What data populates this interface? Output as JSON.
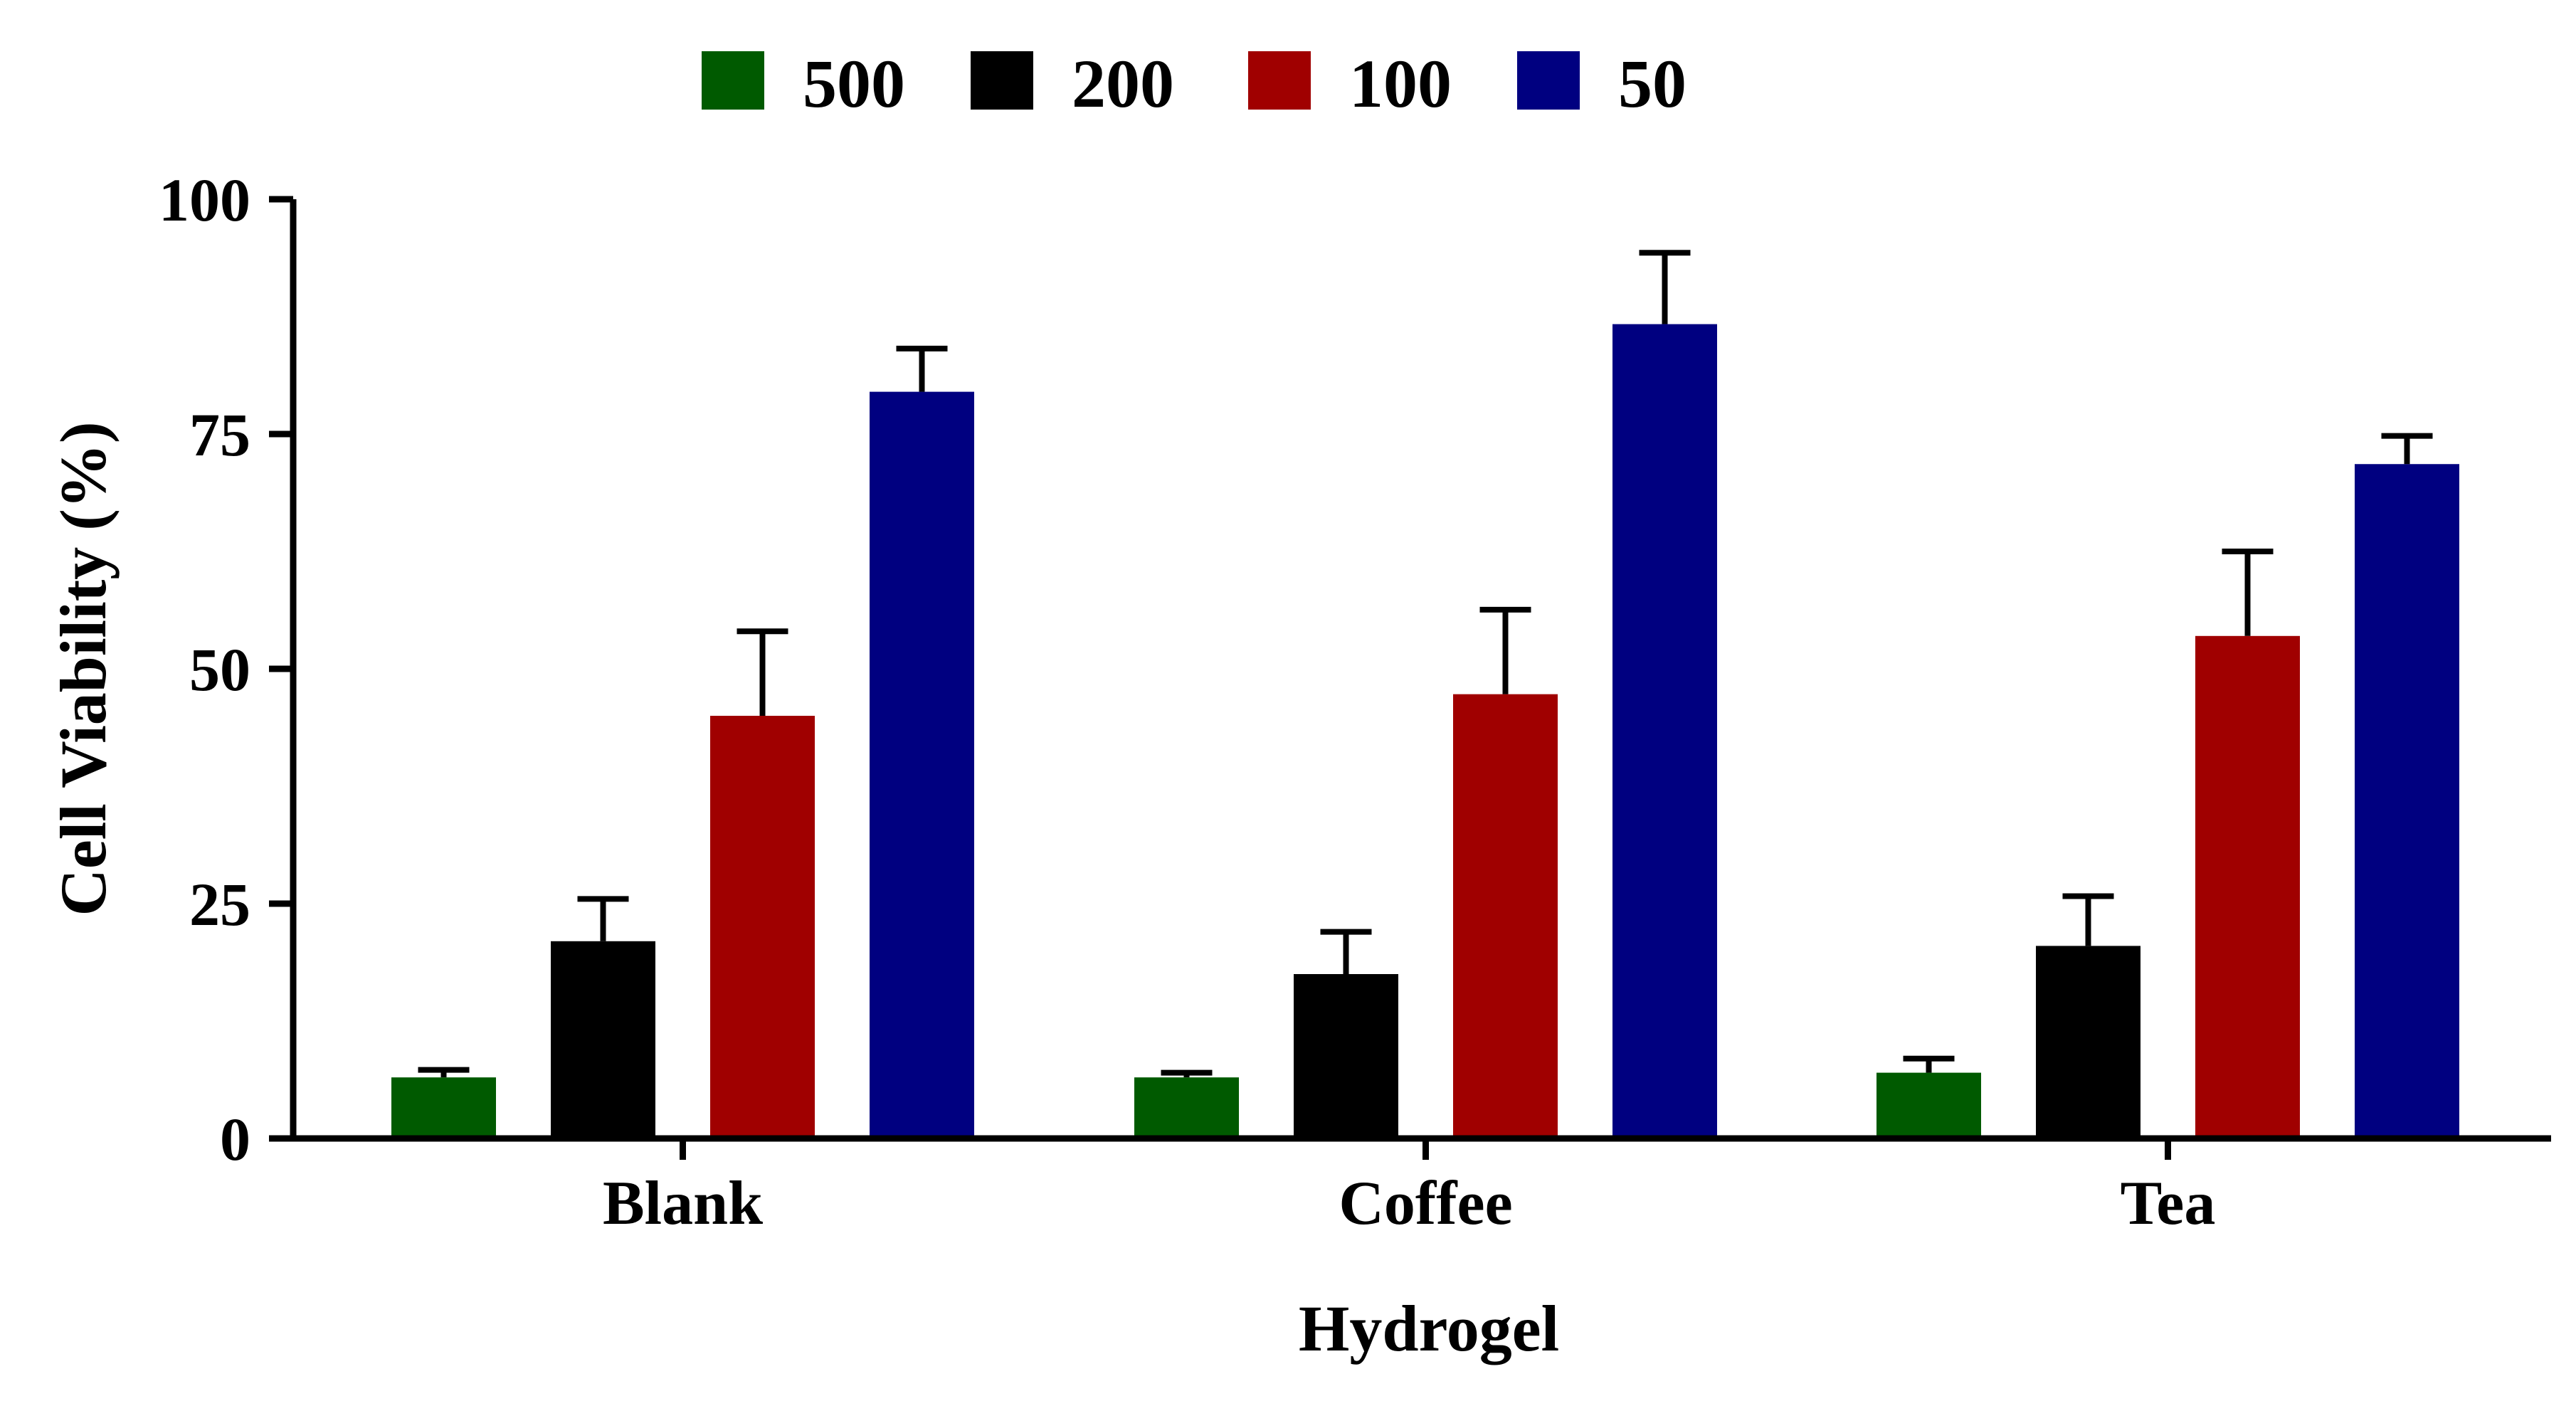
{
  "chart_data": {
    "type": "bar",
    "categories": [
      "Blank",
      "Coffee",
      "Tea"
    ],
    "series": [
      {
        "name": "500",
        "color": "#005a00",
        "values": [
          6.5,
          6.5,
          7
        ],
        "errors": [
          0.8,
          0.5,
          1.5
        ]
      },
      {
        "name": "200",
        "color": "#000000",
        "values": [
          21,
          17.5,
          20.5
        ],
        "errors": [
          4.5,
          4.5,
          5.3
        ]
      },
      {
        "name": "100",
        "color": "#a00000",
        "values": [
          45,
          47.3,
          53.5
        ],
        "errors": [
          9,
          9,
          9
        ]
      },
      {
        "name": "50",
        "color": "#000080",
        "values": [
          79.5,
          86.7,
          71.8
        ],
        "errors": [
          4.6,
          7.6,
          3
        ]
      }
    ],
    "title": "",
    "xlabel": "Hydrogel",
    "ylabel": "Cell Viability (%)",
    "ylim": [
      0,
      100
    ],
    "yticks": [
      "0",
      "25",
      "50",
      "75",
      "100"
    ],
    "legend_position": "top",
    "grid": false
  }
}
